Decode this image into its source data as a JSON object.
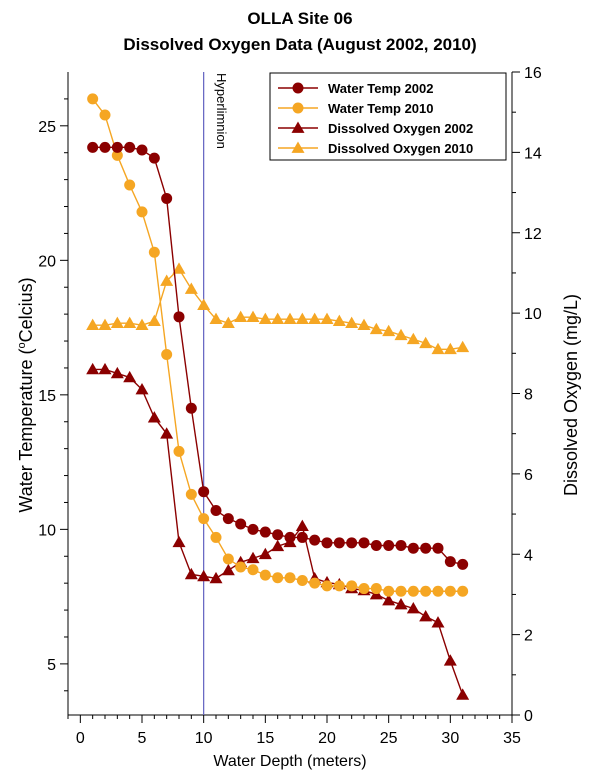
{
  "chart_data": {
    "type": "line",
    "title": "OLLA Site 06",
    "subtitle": "Dissolved Oxygen Data (August 2002, 2010)",
    "xlabel": "Water Depth (meters)",
    "ylabel_left_pre": "Water Temperature (",
    "ylabel_left_sup": "o",
    "ylabel_left_post": "Celcius)",
    "ylabel_right": "Dissolved Oxygen (mg/L)",
    "xlim": [
      -1,
      35
    ],
    "ylim_left": [
      3.1,
      27
    ],
    "ylim_right": [
      0,
      16
    ],
    "xticks": [
      0,
      5,
      10,
      15,
      20,
      25,
      30,
      35
    ],
    "yticks_left": [
      5,
      10,
      15,
      20,
      25
    ],
    "yticks_right": [
      0,
      2,
      4,
      6,
      8,
      10,
      12,
      14,
      16
    ],
    "grid": false,
    "legend_position": "top-right",
    "annotation": {
      "label": "Hyperlimnion",
      "x": 10,
      "color": "#6060c0"
    },
    "series": [
      {
        "name": "Water Temp 2002",
        "axis": "left",
        "marker": "circle",
        "color": "#8b0000",
        "x": [
          1,
          2,
          3,
          4,
          5,
          6,
          7,
          8,
          9,
          10,
          11,
          12,
          13,
          14,
          15,
          16,
          17,
          18,
          19,
          20,
          21,
          22,
          23,
          24,
          25,
          26,
          27,
          28,
          29,
          30,
          31
        ],
        "y": [
          24.2,
          24.2,
          24.2,
          24.2,
          24.1,
          23.8,
          22.3,
          17.9,
          14.5,
          11.4,
          10.7,
          10.4,
          10.2,
          10.0,
          9.9,
          9.8,
          9.7,
          9.7,
          9.6,
          9.5,
          9.5,
          9.5,
          9.5,
          9.4,
          9.4,
          9.4,
          9.3,
          9.3,
          9.3,
          8.8,
          8.7
        ]
      },
      {
        "name": "Water Temp 2010",
        "axis": "left",
        "marker": "circle",
        "color": "#f5a623",
        "x": [
          1,
          2,
          3,
          4,
          5,
          6,
          7,
          8,
          9,
          10,
          11,
          12,
          13,
          14,
          15,
          16,
          17,
          18,
          19,
          20,
          21,
          22,
          23,
          24,
          25,
          26,
          27,
          28,
          29,
          30,
          31
        ],
        "y": [
          26.0,
          25.4,
          23.9,
          22.8,
          21.8,
          20.3,
          16.5,
          12.9,
          11.3,
          10.4,
          9.7,
          8.9,
          8.6,
          8.5,
          8.3,
          8.2,
          8.2,
          8.1,
          8.0,
          7.9,
          7.9,
          7.9,
          7.8,
          7.8,
          7.7,
          7.7,
          7.7,
          7.7,
          7.7,
          7.7,
          7.7
        ]
      },
      {
        "name": "Dissolved Oxygen 2002",
        "axis": "right",
        "marker": "triangle",
        "color": "#8b0000",
        "x": [
          1,
          2,
          3,
          4,
          5,
          6,
          7,
          8,
          9,
          10,
          11,
          12,
          13,
          14,
          15,
          16,
          17,
          18,
          19,
          20,
          21,
          22,
          23,
          24,
          25,
          26,
          27,
          28,
          29,
          30,
          31
        ],
        "y": [
          8.6,
          8.6,
          8.5,
          8.4,
          8.1,
          7.4,
          7.0,
          4.3,
          3.5,
          3.45,
          3.4,
          3.6,
          3.8,
          3.9,
          4.0,
          4.2,
          4.3,
          4.7,
          3.4,
          3.3,
          3.25,
          3.15,
          3.1,
          3.0,
          2.85,
          2.75,
          2.65,
          2.45,
          2.3,
          1.35,
          0.5
        ]
      },
      {
        "name": "Dissolved Oxygen 2010",
        "axis": "right",
        "marker": "triangle",
        "color": "#f5a623",
        "x": [
          1,
          2,
          3,
          4,
          5,
          6,
          7,
          8,
          9,
          10,
          11,
          12,
          13,
          14,
          15,
          16,
          17,
          18,
          19,
          20,
          21,
          22,
          23,
          24,
          25,
          26,
          27,
          28,
          29,
          30,
          31
        ],
        "y": [
          9.7,
          9.7,
          9.75,
          9.75,
          9.7,
          9.8,
          10.8,
          11.1,
          10.6,
          10.2,
          9.85,
          9.75,
          9.9,
          9.9,
          9.85,
          9.85,
          9.85,
          9.85,
          9.85,
          9.85,
          9.8,
          9.75,
          9.7,
          9.6,
          9.55,
          9.45,
          9.35,
          9.25,
          9.1,
          9.1,
          9.15
        ]
      }
    ]
  }
}
